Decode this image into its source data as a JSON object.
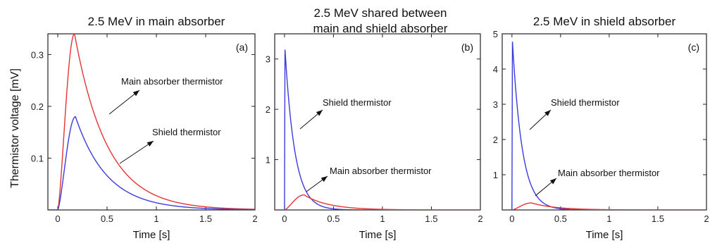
{
  "y_axis_label": "Thermistor voltage [mV]",
  "colors": {
    "main": "#e53333",
    "shield": "#3b3bdc",
    "axis": "#222222"
  },
  "chart_data": [
    {
      "type": "line",
      "panel_label": "(a)",
      "title_lines": [
        "2.5 MeV in main absorber"
      ],
      "xlabel": "Time [s]",
      "xlim": [
        -0.1,
        2
      ],
      "ylim": [
        0,
        0.34
      ],
      "xticks": [
        "0",
        "0.5",
        "1",
        "1.5",
        "2"
      ],
      "xtick_values": [
        0,
        0.5,
        1,
        1.5,
        2
      ],
      "yticks": [
        "0.1",
        "0.2",
        "0.3"
      ],
      "ytick_values": [
        0.1,
        0.2,
        0.3
      ],
      "annotations": [
        "Main absorber thermistor",
        "Shield thermistor"
      ],
      "series": [
        {
          "key": "main",
          "peak": 0.34,
          "t0": 0.0,
          "t_peak": 0.17,
          "tau": 0.33
        },
        {
          "key": "shield",
          "peak": 0.18,
          "t0": 0.0,
          "t_peak": 0.18,
          "tau": 0.32
        }
      ]
    },
    {
      "type": "line",
      "panel_label": "(b)",
      "title_lines": [
        "2.5 MeV shared between",
        "main and shield absorber"
      ],
      "xlabel": "Time [s]",
      "xlim": [
        -0.1,
        2
      ],
      "ylim": [
        0,
        3.5
      ],
      "xticks": [
        "0",
        "0.5",
        "1",
        "1.5",
        "2"
      ],
      "xtick_values": [
        0,
        0.5,
        1,
        1.5,
        2
      ],
      "yticks": [
        "1",
        "2",
        "3"
      ],
      "ytick_values": [
        1,
        2,
        3
      ],
      "annotations": [
        "Shield thermistor",
        "Main absorber thermistor"
      ],
      "series": [
        {
          "key": "shield",
          "peak": 3.2,
          "t0": 0.0,
          "t_peak": 0.005,
          "tau": 0.1
        },
        {
          "key": "main",
          "peak": 0.3,
          "t0": 0.0,
          "t_peak": 0.2,
          "tau": 0.25
        }
      ]
    },
    {
      "type": "line",
      "panel_label": "(c)",
      "title_lines": [
        "2.5 MeV in shield absorber"
      ],
      "xlabel": "Time [s]",
      "xlim": [
        -0.1,
        2
      ],
      "ylim": [
        0,
        5
      ],
      "xticks": [
        "0",
        "0.5",
        "1",
        "1.5",
        "2"
      ],
      "xtick_values": [
        0,
        0.5,
        1,
        1.5,
        2
      ],
      "yticks": [
        "1",
        "2",
        "3",
        "4",
        "5"
      ],
      "ytick_values": [
        1,
        2,
        3,
        4,
        5
      ],
      "annotations": [
        "Shield thermistor",
        "Main absorber thermistor"
      ],
      "series": [
        {
          "key": "shield",
          "peak": 4.8,
          "t0": 0.0,
          "t_peak": 0.005,
          "tau": 0.1
        },
        {
          "key": "main",
          "peak": 0.2,
          "t0": 0.0,
          "t_peak": 0.2,
          "tau": 0.25
        }
      ]
    }
  ]
}
